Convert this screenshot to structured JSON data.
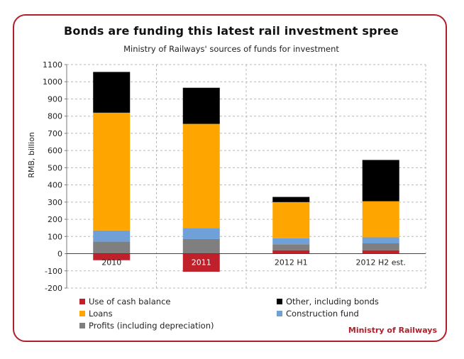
{
  "chart_data": {
    "type": "bar",
    "stacked": true,
    "title": "Bonds are funding this latest rail investment spree",
    "subtitle": "Ministry of Railways' sources of funds for investment",
    "ylabel": "RMB, billion",
    "ylim": [
      -200,
      1100
    ],
    "yticks": [
      -200,
      -100,
      0,
      100,
      200,
      300,
      400,
      500,
      600,
      700,
      800,
      900,
      1000,
      1100
    ],
    "categories": [
      "2010",
      "2011",
      "2012 H1",
      "2012 H2 est."
    ],
    "series": [
      {
        "name": "Use of cash balance",
        "color": "#c0202a",
        "values": [
          -38,
          -105,
          20,
          20
        ]
      },
      {
        "name": "Profits (including depreciation)",
        "color": "#7f7f7f",
        "values": [
          70,
          85,
          35,
          40
        ]
      },
      {
        "name": "Construction fund",
        "color": "#6fa0d8",
        "values": [
          65,
          65,
          35,
          35
        ]
      },
      {
        "name": "Loans",
        "color": "#ffa500",
        "values": [
          685,
          605,
          210,
          210
        ]
      },
      {
        "name": "Other, including bonds",
        "color": "#000000",
        "values": [
          237,
          210,
          30,
          240
        ]
      }
    ],
    "grid": true,
    "legend_position": "bottom"
  },
  "legend_rows": [
    [
      "Use of cash balance",
      "Other, including bonds"
    ],
    [
      "Loans",
      "Construction fund"
    ],
    [
      "Profits (including depreciation)"
    ]
  ],
  "source": "Ministry of Railways"
}
